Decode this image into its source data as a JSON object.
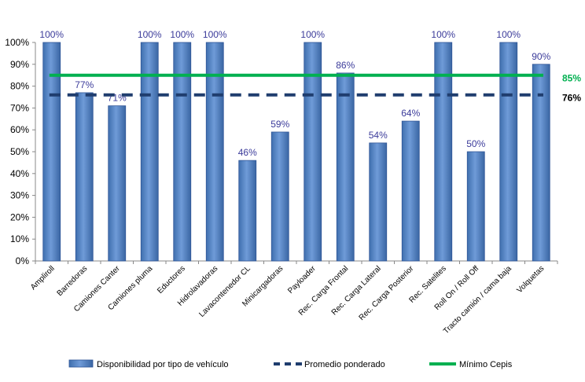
{
  "chart_data": {
    "type": "bar",
    "categories": [
      "Ampliroll",
      "Barredoras",
      "Camiones Canter",
      "Camiones pluma",
      "Eductores",
      "Hidrolavadoras",
      "Lavacontenedor CL",
      "Minicargadoras",
      "Payloader",
      "Rec. Carga Frontal",
      "Rec. Carga Lateral",
      "Rec. Carga Posterior",
      "Rec. Satelites",
      "Roll On / Roll Off",
      "Tracto camión / cama baja",
      "Volquetas"
    ],
    "series": [
      {
        "name": "Disponibilidad por tipo de vehículo",
        "values": [
          100,
          77,
          71,
          100,
          100,
          100,
          46,
          59,
          100,
          86,
          54,
          64,
          100,
          50,
          100,
          90
        ],
        "value_labels": [
          "100%",
          "77%",
          "71%",
          "100%",
          "100%",
          "100%",
          "46%",
          "59%",
          "100%",
          "86%",
          "54%",
          "64%",
          "100%",
          "50%",
          "100%",
          "90%"
        ],
        "color": "#4f81bd"
      }
    ],
    "reference_lines": [
      {
        "name": "Promedio ponderado",
        "value": 76,
        "label": "76%",
        "style": "dashed",
        "color": "#1f3d6e",
        "label_color": "#000000"
      },
      {
        "name": "Mínimo Cepis",
        "value": 85,
        "label": "85%",
        "style": "solid",
        "color": "#00b050",
        "label_color": "#00b050"
      }
    ],
    "yticks": [
      "0%",
      "10%",
      "20%",
      "30%",
      "40%",
      "50%",
      "60%",
      "70%",
      "80%",
      "90%",
      "100%"
    ],
    "ylim": [
      0,
      100
    ],
    "title": "",
    "xlabel": "",
    "ylabel": "",
    "legend_position": "bottom"
  }
}
